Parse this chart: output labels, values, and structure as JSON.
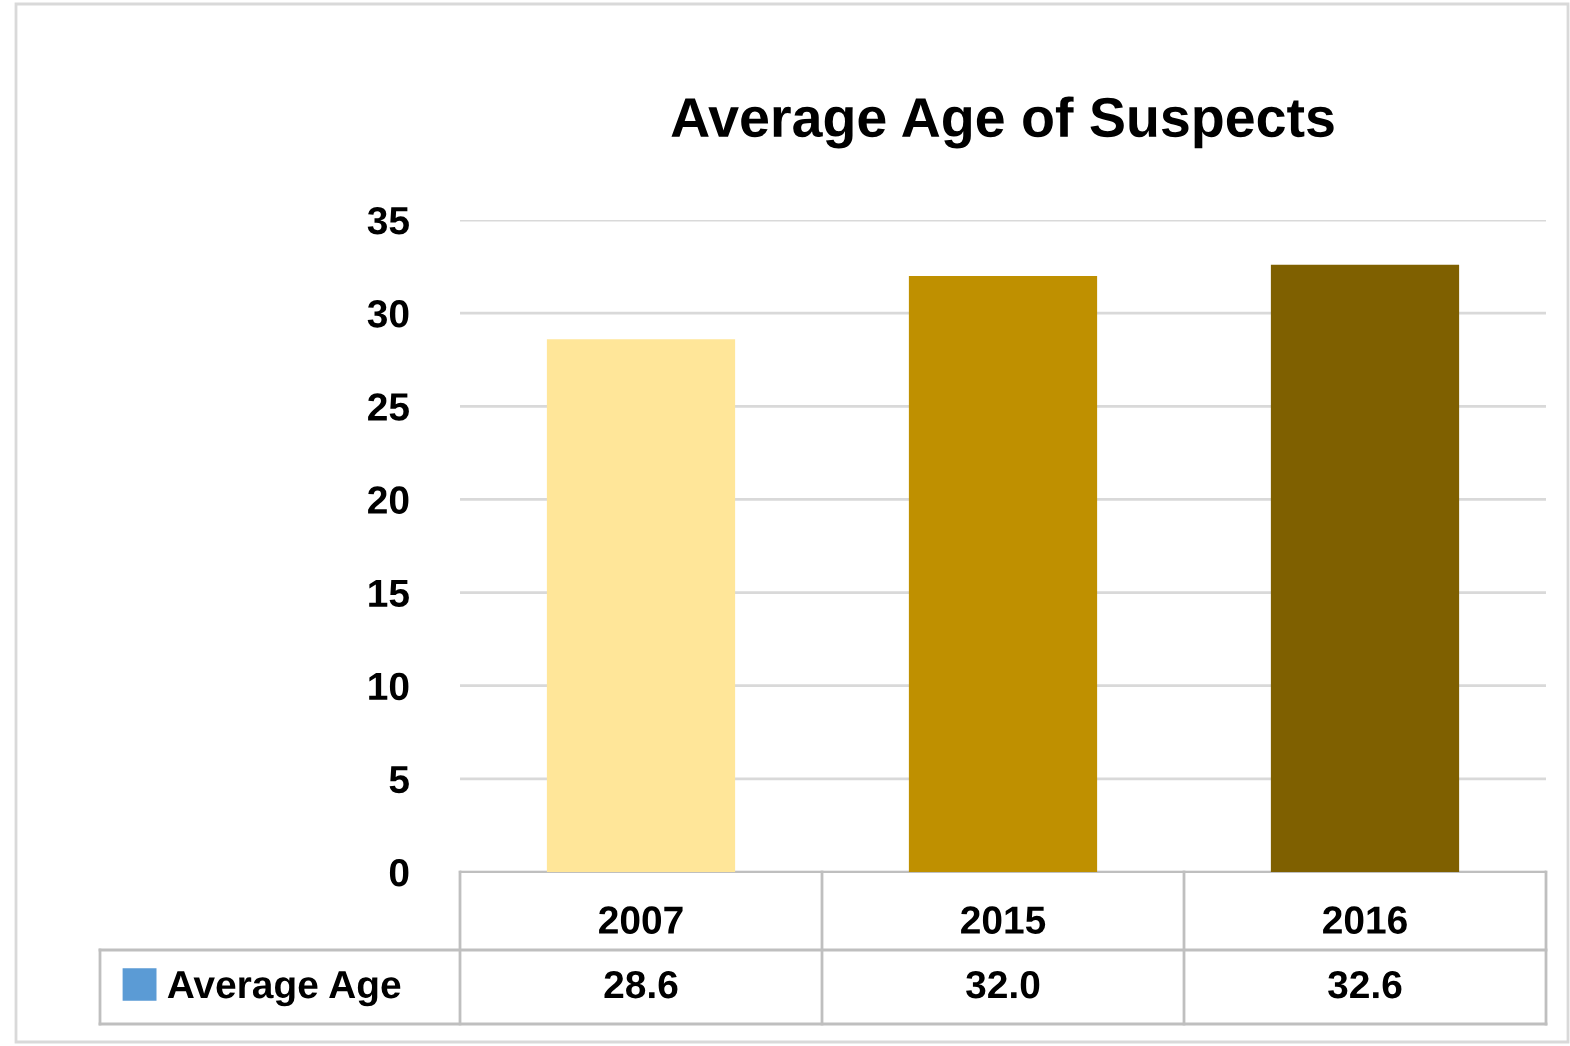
{
  "chart_data": {
    "type": "bar",
    "title": "Average Age of Suspects",
    "categories": [
      "2007",
      "2015",
      "2016"
    ],
    "series": [
      {
        "name": "Average Age",
        "color": "#5b9bd5",
        "colors": [
          "#ffe699",
          "#bf9000",
          "#7f6000"
        ],
        "values": [
          28.6,
          32.0,
          32.6
        ],
        "value_labels": [
          "28.6",
          "32.0",
          "32.6"
        ]
      }
    ],
    "ylim": [
      0,
      35
    ],
    "yticks": [
      0,
      5,
      10,
      15,
      20,
      25,
      30,
      35
    ],
    "grid": "y",
    "legend": "bottom"
  }
}
